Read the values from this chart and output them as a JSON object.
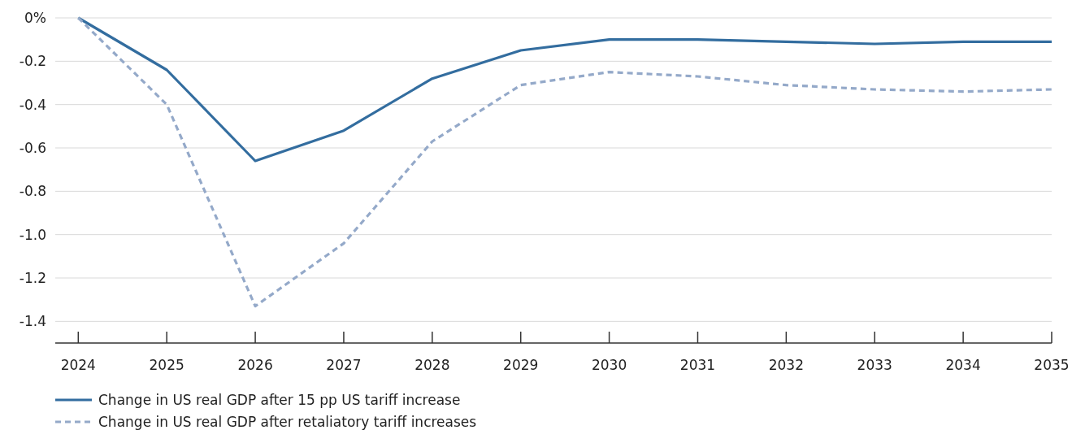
{
  "chart_data": {
    "type": "line",
    "x": [
      2024,
      2025,
      2026,
      2027,
      2028,
      2029,
      2030,
      2031,
      2032,
      2033,
      2034,
      2035
    ],
    "series": [
      {
        "name": "Change in US real GDP after 15 pp US tariff increase",
        "color": "#336d9f",
        "line_style": "solid",
        "values": [
          0,
          -0.24,
          -0.66,
          -0.52,
          -0.28,
          -0.15,
          -0.1,
          -0.1,
          -0.11,
          -0.12,
          -0.11,
          -0.11
        ]
      },
      {
        "name": "Change in US real GDP after retaliatory tariff increases",
        "color": "#94a9c9",
        "line_style": "dashed",
        "values": [
          0,
          -0.4,
          -1.33,
          -1.04,
          -0.57,
          -0.31,
          -0.25,
          -0.27,
          -0.31,
          -0.33,
          -0.34,
          -0.33
        ]
      }
    ],
    "xlim": [
      2023.74,
      2035
    ],
    "xticks": [
      2024,
      2025,
      2026,
      2027,
      2028,
      2029,
      2030,
      2031,
      2032,
      2033,
      2034,
      2035
    ],
    "ylim": [
      -1.5,
      0
    ],
    "yticks": [
      {
        "value": 0,
        "label": "0%"
      },
      {
        "value": -0.2,
        "label": "-0.2"
      },
      {
        "value": -0.4,
        "label": "-0.4"
      },
      {
        "value": -0.6,
        "label": "-0.6"
      },
      {
        "value": -0.8,
        "label": "-0.8"
      },
      {
        "value": -1,
        "label": "-1.0"
      },
      {
        "value": -1.2,
        "label": "-1.2"
      },
      {
        "value": -1.4,
        "label": "-1.4"
      }
    ],
    "grid": "y",
    "legend": "bottom",
    "marker": "none"
  }
}
